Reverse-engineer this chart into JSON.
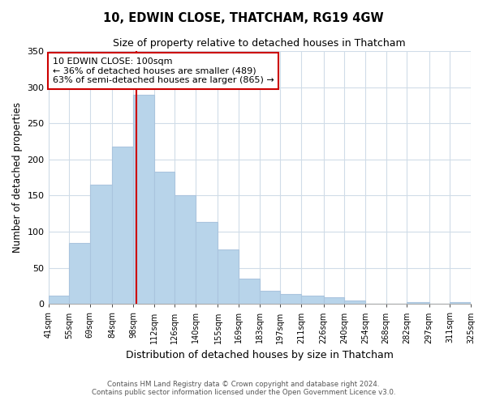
{
  "title": "10, EDWIN CLOSE, THATCHAM, RG19 4GW",
  "subtitle": "Size of property relative to detached houses in Thatcham",
  "xlabel": "Distribution of detached houses by size in Thatcham",
  "ylabel": "Number of detached properties",
  "bar_edges": [
    41,
    55,
    69,
    84,
    98,
    112,
    126,
    140,
    155,
    169,
    183,
    197,
    211,
    226,
    240,
    254,
    268,
    282,
    297,
    311,
    325
  ],
  "bar_heights": [
    11,
    84,
    165,
    218,
    289,
    183,
    150,
    114,
    75,
    35,
    18,
    14,
    12,
    9,
    5,
    0,
    0,
    3,
    0,
    2
  ],
  "bar_color": "#b8d4ea",
  "bar_edge_color": "#aac4de",
  "vline_x": 100,
  "vline_color": "#cc0000",
  "annotation_title": "10 EDWIN CLOSE: 100sqm",
  "annotation_line1": "← 36% of detached houses are smaller (489)",
  "annotation_line2": "63% of semi-detached houses are larger (865) →",
  "annotation_box_color": "#ffffff",
  "annotation_box_edge": "#cc0000",
  "ylim": [
    0,
    350
  ],
  "yticks": [
    0,
    50,
    100,
    150,
    200,
    250,
    300,
    350
  ],
  "tick_labels": [
    "41sqm",
    "55sqm",
    "69sqm",
    "84sqm",
    "98sqm",
    "112sqm",
    "126sqm",
    "140sqm",
    "155sqm",
    "169sqm",
    "183sqm",
    "197sqm",
    "211sqm",
    "226sqm",
    "240sqm",
    "254sqm",
    "268sqm",
    "282sqm",
    "297sqm",
    "311sqm",
    "325sqm"
  ],
  "footer1": "Contains HM Land Registry data © Crown copyright and database right 2024.",
  "footer2": "Contains public sector information licensed under the Open Government Licence v3.0.",
  "background_color": "#ffffff",
  "grid_color": "#d0dce8"
}
